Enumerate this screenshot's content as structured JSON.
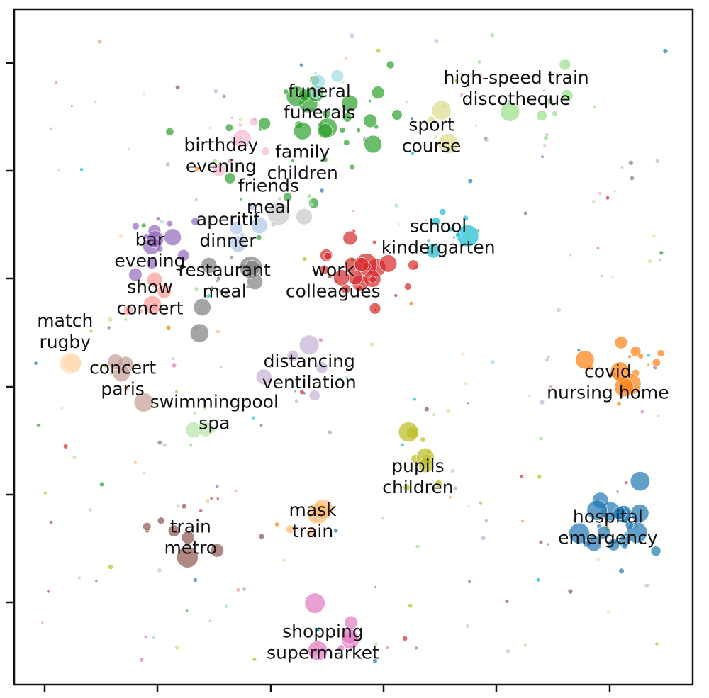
{
  "chart_data": {
    "type": "scatter",
    "title": "",
    "xlabel": "",
    "ylabel": "",
    "grid": false,
    "legend": "none",
    "x_ticks_shown": true,
    "x_tick_labels": [],
    "y_ticks_shown": true,
    "y_tick_labels": [],
    "xlim": [
      0,
      100
    ],
    "ylim": [
      0,
      100
    ],
    "clusters": [
      {
        "words": [
          "hospital",
          "emergency"
        ],
        "color": "#1f77b4",
        "center": [
          89,
          23
        ],
        "spread": 3.2,
        "count": 26
      },
      {
        "words": [
          "covid",
          "nursing home"
        ],
        "color": "#ff7f0e",
        "center": [
          90,
          47
        ],
        "spread": 3.0,
        "count": 18
      },
      {
        "words": [
          "family",
          "children"
        ],
        "color": "#2ca02c",
        "center": [
          39,
          82
        ],
        "spread": 7.5,
        "count": 34
      },
      {
        "words": [
          "work",
          "colleagues"
        ],
        "color": "#d62728",
        "center": [
          51,
          60
        ],
        "spread": 4.0,
        "count": 26
      },
      {
        "words": [
          "bar",
          "evening"
        ],
        "color": "#9467bd",
        "center": [
          21,
          65
        ],
        "spread": 3.5,
        "count": 14
      },
      {
        "words": [
          "train",
          "metro"
        ],
        "color": "#8c564b",
        "center": [
          25,
          23
        ],
        "spread": 3.5,
        "count": 10
      },
      {
        "words": [
          "shopping",
          "supermarket"
        ],
        "color": "#e377c2",
        "center": [
          45,
          7
        ],
        "spread": 3.0,
        "count": 9
      },
      {
        "words": [
          "restaurant",
          "meal"
        ],
        "color": "#7f7f7f",
        "center": [
          31,
          60
        ],
        "spread": 3.5,
        "count": 14
      },
      {
        "words": [
          "pupils",
          "children"
        ],
        "color": "#bcbd22",
        "center": [
          59,
          34
        ],
        "spread": 2.0,
        "count": 10
      },
      {
        "words": [
          "school",
          "kindergarten"
        ],
        "color": "#17becf",
        "center": [
          64,
          67
        ],
        "spread": 2.5,
        "count": 9
      },
      {
        "words": [
          "high-speed train",
          "discotheque"
        ],
        "color": "#98df8a",
        "center": [
          76,
          88
        ],
        "spread": 4.0,
        "count": 10
      },
      {
        "words": [
          "mask",
          "train"
        ],
        "color": "#ffbb78",
        "center": [
          46,
          24
        ],
        "spread": 2.5,
        "count": 7
      },
      {
        "words": [
          "show",
          "concert"
        ],
        "color": "#ff9896",
        "center": [
          20,
          57
        ],
        "spread": 2.0,
        "count": 6
      },
      {
        "words": [
          "concert",
          "paris"
        ],
        "color": "#c49c94",
        "center": [
          16,
          45
        ],
        "spread": 3.0,
        "count": 6
      },
      {
        "words": [
          "funeral",
          "funerals"
        ],
        "color": "#9edae5",
        "center": [
          46,
          89
        ],
        "spread": 2.0,
        "count": 5
      },
      {
        "words": [
          "sport",
          "course"
        ],
        "color": "#dbdb8d",
        "center": [
          62,
          83
        ],
        "spread": 2.0,
        "count": 5
      },
      {
        "words": [
          "birthday",
          "evening"
        ],
        "color": "#f7b6d2",
        "center": [
          33,
          80
        ],
        "spread": 2.5,
        "count": 6
      },
      {
        "words": [
          "aperitif",
          "dinner"
        ],
        "color": "#aec7e8",
        "center": [
          34,
          67
        ],
        "spread": 2.0,
        "count": 5
      },
      {
        "words": [
          "distancing",
          "ventilation"
        ],
        "color": "#c5b0d5",
        "center": [
          43,
          47
        ],
        "spread": 3.0,
        "count": 7
      },
      {
        "words": [
          "swimmingpool",
          "spa"
        ],
        "color": "#b5e3a8",
        "center": [
          28,
          39
        ],
        "spread": 2.0,
        "count": 4
      },
      {
        "words": [
          "match",
          "rugby"
        ],
        "color": "#ffd8b1",
        "center": [
          7,
          48
        ],
        "spread": 1.0,
        "count": 2
      },
      {
        "words": [
          "friends",
          "meal"
        ],
        "color": "#c7c7c7",
        "center": [
          39,
          71
        ],
        "spread": 3.0,
        "count": 6
      }
    ],
    "labels": [
      {
        "text": [
          "high-speed train",
          "discotheque"
        ],
        "x": 74,
        "y": 89
      },
      {
        "text": [
          "funeral",
          "funerals"
        ],
        "x": 45,
        "y": 87
      },
      {
        "text": [
          "sport",
          "course"
        ],
        "x": 61.5,
        "y": 82
      },
      {
        "text": [
          "birthday",
          "evening"
        ],
        "x": 30.5,
        "y": 79
      },
      {
        "text": [
          "family",
          "children"
        ],
        "x": 42.5,
        "y": 78
      },
      {
        "text": [
          "friends",
          "meal"
        ],
        "x": 37.5,
        "y": 73
      },
      {
        "text": [
          "aperitif",
          "dinner"
        ],
        "x": 31.5,
        "y": 68
      },
      {
        "text": [
          "bar",
          "evening"
        ],
        "x": 20,
        "y": 65
      },
      {
        "text": [
          "school",
          "kindergarten"
        ],
        "x": 62.5,
        "y": 67
      },
      {
        "text": [
          "restaurant",
          "meal"
        ],
        "x": 31,
        "y": 60.5
      },
      {
        "text": [
          "show",
          "concert"
        ],
        "x": 20,
        "y": 58
      },
      {
        "text": [
          "work",
          "colleagues"
        ],
        "x": 47,
        "y": 60.5
      },
      {
        "text": [
          "match",
          "rugby"
        ],
        "x": 7.5,
        "y": 53
      },
      {
        "text": [
          "concert",
          "paris"
        ],
        "x": 16,
        "y": 46
      },
      {
        "text": [
          "distancing",
          "ventilation"
        ],
        "x": 43.5,
        "y": 47
      },
      {
        "text": [
          "covid",
          "nursing home"
        ],
        "x": 87.5,
        "y": 45.5
      },
      {
        "text": [
          "swimmingpool",
          "spa"
        ],
        "x": 29.5,
        "y": 41
      },
      {
        "text": [
          "pupils",
          "children"
        ],
        "x": 59.5,
        "y": 31.5
      },
      {
        "text": [
          "mask",
          "train"
        ],
        "x": 44,
        "y": 25
      },
      {
        "text": [
          "hospital",
          "emergency"
        ],
        "x": 87.5,
        "y": 24
      },
      {
        "text": [
          "train",
          "metro"
        ],
        "x": 26,
        "y": 22.5
      },
      {
        "text": [
          "shopping",
          "supermarket"
        ],
        "x": 45.5,
        "y": 7
      }
    ]
  }
}
